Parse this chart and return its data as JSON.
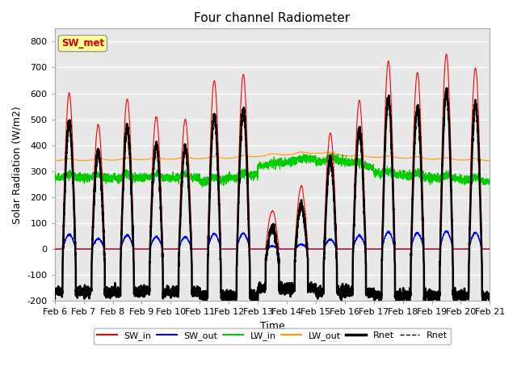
{
  "title": "Four channel Radiometer",
  "xlabel": "Time",
  "ylabel": "Solar Radiation (W/m2)",
  "ylim": [
    -200,
    850
  ],
  "yticks": [
    -200,
    -100,
    0,
    100,
    200,
    300,
    400,
    500,
    600,
    700,
    800
  ],
  "date_labels": [
    "Feb 6",
    "Feb 7",
    "Feb 8",
    "Feb 9",
    "Feb 10",
    "Feb 11",
    "Feb 12",
    "Feb 13",
    "Feb 14",
    "Feb 15",
    "Feb 16",
    "Feb 17",
    "Feb 18",
    "Feb 19",
    "Feb 20",
    "Feb 21"
  ],
  "annotation_text": "SW_met",
  "annotation_color": "#cc0000",
  "annotation_bg": "#ffff99",
  "fig_bg": "#ffffff",
  "plot_bg": "#e8e8e8",
  "grid_color": "#ffffff",
  "colors": {
    "SW_in": "#ff0000",
    "SW_out": "#0000ff",
    "LW_in": "#00cc00",
    "LW_out": "#ff9900",
    "Rnet": "#000000"
  },
  "legend_labels": [
    "SW_in",
    "SW_out",
    "LW_in",
    "LW_out",
    "Rnet",
    "Rnet"
  ],
  "legend_colors": [
    "#ff0000",
    "#0000ff",
    "#00cc00",
    "#ff9900",
    "#000000",
    "#000000"
  ],
  "legend_linestyles": [
    "-",
    "-",
    "-",
    "-",
    "-",
    "--"
  ],
  "legend_linewidths": [
    1.5,
    1.5,
    1.5,
    1.5,
    2.5,
    1.0
  ]
}
